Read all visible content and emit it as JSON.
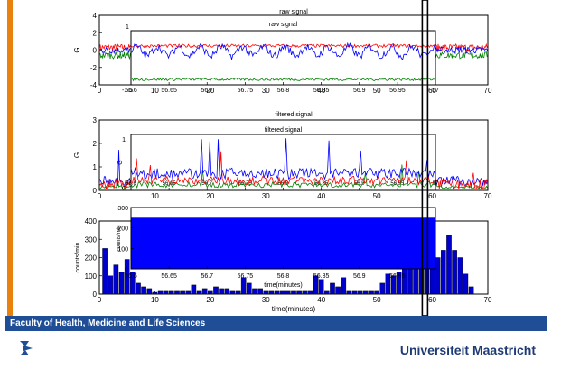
{
  "colors": {
    "red": "#ff0000",
    "blue": "#0000ff",
    "green": "#008000",
    "bar": "#0000cc",
    "footer": "#1f4e97",
    "accent": "#e8820c",
    "text_dark": "#1f3b75"
  },
  "footer": {
    "faculty": "Faculty of Health, Medicine and Life Sciences",
    "university": "Universiteit Maastricht",
    "logo_icon": "um-logo-icon"
  },
  "chart_data": [
    {
      "type": "line",
      "title": "raw signal",
      "ylabel": "G",
      "xlim": [
        0,
        70
      ],
      "ylim": [
        -4,
        4
      ],
      "xticks": [
        0,
        10,
        20,
        30,
        40,
        50,
        60,
        70
      ],
      "yticks": [
        -4,
        -2,
        0,
        2,
        4
      ],
      "series": [
        {
          "color": "#ff0000",
          "level": 0.3
        },
        {
          "color": "#0000ff",
          "level": 0
        },
        {
          "color": "#008000",
          "level": -0.6
        }
      ]
    },
    {
      "type": "line",
      "title": "raw signal",
      "xlim": [
        56.6,
        57
      ],
      "ylim": [
        -1.5,
        1
      ],
      "xticks": [
        56.6,
        56.65,
        56.7,
        56.75,
        56.8,
        56.85,
        56.9,
        56.95,
        57
      ],
      "yticks": [
        -1.5,
        1
      ],
      "series": [
        {
          "color": "#ff0000",
          "level": 0.3
        },
        {
          "color": "#0000ff",
          "level": 0.05
        },
        {
          "color": "#008000",
          "level": -1.25
        }
      ]
    },
    {
      "type": "line",
      "title": "filtered signal",
      "ylabel": "G",
      "xlim": [
        0,
        70
      ],
      "ylim": [
        0,
        3
      ],
      "xticks": [
        0,
        10,
        20,
        30,
        40,
        50,
        60,
        70
      ],
      "yticks": [
        0,
        1,
        2,
        3
      ],
      "series": [
        {
          "color": "#ff0000"
        },
        {
          "color": "#0000ff"
        },
        {
          "color": "#008000"
        }
      ]
    },
    {
      "type": "line",
      "title": "filtered signal",
      "ylabel": "G",
      "xlim": [
        56.6,
        57
      ],
      "ylim": [
        0,
        1
      ],
      "xticks": [
        56.6,
        56.65,
        56.7,
        56.75,
        56.8,
        56.85,
        56.9,
        56.95,
        57
      ],
      "yticks": [
        0,
        1
      ],
      "series": [
        {
          "color": "#ff0000"
        },
        {
          "color": "#0000ff"
        },
        {
          "color": "#008000"
        }
      ]
    },
    {
      "type": "bar",
      "ylabel": "counts/min",
      "xlabel": "time(minutes)",
      "xlim": [
        0,
        70
      ],
      "ylim": [
        0,
        400
      ],
      "xticks": [
        0,
        10,
        20,
        30,
        40,
        50,
        60,
        70
      ],
      "yticks": [
        0,
        100,
        200,
        300,
        400
      ],
      "x": [
        1,
        2,
        3,
        4,
        5,
        6,
        7,
        8,
        9,
        10,
        11,
        12,
        13,
        14,
        15,
        16,
        17,
        18,
        19,
        20,
        21,
        22,
        23,
        24,
        25,
        26,
        27,
        28,
        29,
        30,
        31,
        32,
        33,
        34,
        35,
        36,
        37,
        38,
        39,
        40,
        41,
        42,
        43,
        44,
        45,
        46,
        47,
        48,
        49,
        50,
        51,
        52,
        53,
        54,
        55,
        56,
        57,
        58,
        59,
        60,
        61,
        62,
        63,
        64,
        65,
        66,
        67
      ],
      "values": [
        250,
        100,
        160,
        120,
        190,
        120,
        60,
        40,
        30,
        10,
        20,
        20,
        20,
        20,
        20,
        20,
        50,
        20,
        30,
        20,
        40,
        30,
        30,
        20,
        20,
        90,
        60,
        30,
        30,
        20,
        20,
        20,
        20,
        20,
        20,
        20,
        20,
        20,
        100,
        80,
        20,
        60,
        40,
        90,
        20,
        20,
        20,
        20,
        20,
        20,
        60,
        110,
        100,
        120,
        140,
        150,
        200,
        160,
        160,
        250,
        200,
        240,
        320,
        240,
        200,
        110,
        40
      ]
    },
    {
      "type": "bar",
      "ylabel": "counts/min",
      "xlabel": "time(minutes)",
      "xlim": [
        56.6,
        57
      ],
      "ylim": [
        0,
        300
      ],
      "xticks": [
        56.6,
        56.65,
        56.7,
        56.75,
        56.8,
        56.85,
        56.9,
        56.95
      ],
      "yticks": [
        0,
        100,
        200,
        300
      ],
      "x": [
        56.6,
        57
      ],
      "values": [
        250,
        250
      ]
    }
  ]
}
